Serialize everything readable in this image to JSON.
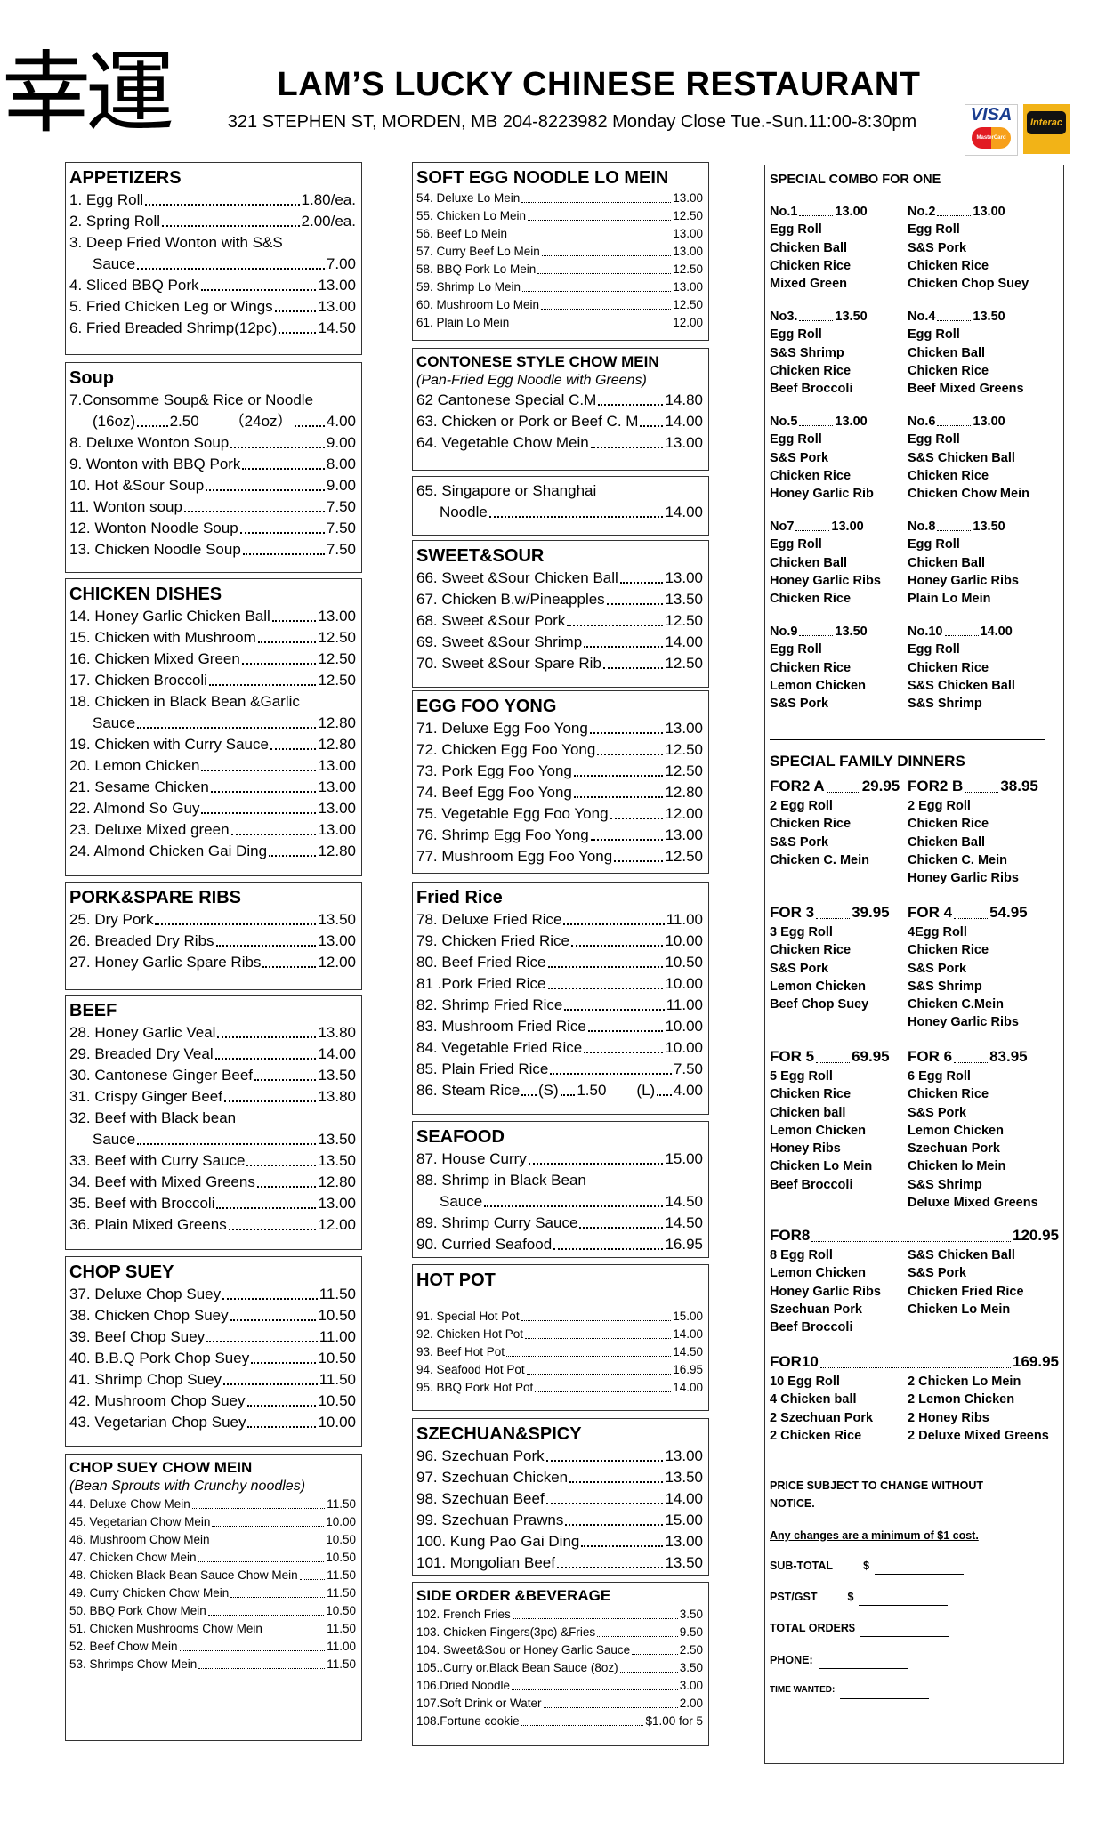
{
  "header": {
    "logo_chars": "幸運",
    "title": "LAM’S LUCKY CHINESE RESTAURANT",
    "info": "321 STEPHEN ST, MORDEN, MB  204-8223982 Monday Close Tue.-Sun.11:00-8:30pm",
    "visa": "VISA",
    "mastercard": "MasterCard",
    "interac": "Interac"
  },
  "columns": [
    [
      {
        "title": "APPETIZERS",
        "items": [
          {
            "name": "1. Egg Roll",
            "price": "1.80/ea."
          },
          {
            "name": "2. Spring Roll",
            "price": "2.00/ea."
          },
          {
            "name": "3. Deep Fried Wonton with S&S",
            "cont": "Sauce",
            "price": "7.00"
          },
          {
            "name": "4. Sliced BBQ Pork",
            "price": "13.00"
          },
          {
            "name": "5.  Fried Chicken Leg or Wings",
            "price": "13.00"
          },
          {
            "name": "6. Fried Breaded Shrimp(12pc)",
            "price": "14.50"
          }
        ]
      },
      {
        "title": "Soup",
        "items": [
          {
            "name": "7.Consomme Soup& Rice or Noodle",
            "sizes": [
              {
                "size": "(16oz)",
                "price": "2.50"
              },
              {
                "size": "（24oz）",
                "price": "4.00"
              }
            ]
          },
          {
            "name": "8. Deluxe Wonton Soup",
            "price": "9.00"
          },
          {
            "name": "9. Wonton with BBQ Pork",
            "price": "8.00"
          },
          {
            "name": "10. Hot &Sour Soup",
            "price": "9.00"
          },
          {
            "name": "11. Wonton soup",
            "price": "7.50"
          },
          {
            "name": "12. Wonton Noodle Soup",
            "price": "7.50"
          },
          {
            "name": "13. Chicken Noodle Soup",
            "price": "7.50"
          }
        ]
      },
      {
        "title": "CHICKEN DISHES",
        "items": [
          {
            "name": "14. Honey Garlic Chicken Ball",
            "price": "13.00"
          },
          {
            "name": "15. Chicken with Mushroom",
            "price": "12.50"
          },
          {
            "name": "16. Chicken Mixed Green",
            "price": "12.50"
          },
          {
            "name": "17. Chicken Broccoli",
            "price": "12.50"
          },
          {
            "name": "18. Chicken in Black Bean &Garlic",
            "cont": "Sauce",
            "price": "12.80"
          },
          {
            "name": "19. Chicken with Curry Sauce",
            "price": "12.80"
          },
          {
            "name": "20. Lemon Chicken",
            "price": "13.00"
          },
          {
            "name": "21. Sesame Chicken",
            "price": "13.00"
          },
          {
            "name": "22. Almond So Guy",
            "price": "13.00"
          },
          {
            "name": "23. Deluxe Mixed green",
            "price": "13.00"
          },
          {
            "name": "24. Almond Chicken Gai Ding",
            "price": "12.80"
          }
        ]
      },
      {
        "title": "PORK&SPARE RIBS",
        "items": [
          {
            "name": "25. Dry Pork",
            "price": "13.50"
          },
          {
            "name": "26. Breaded Dry Ribs",
            "price": "13.00"
          },
          {
            "name": "27. Honey Garlic Spare Ribs",
            "price": "12.00"
          }
        ]
      },
      {
        "title": "BEEF",
        "items": [
          {
            "name": "28. Honey Garlic Veal",
            "price": "13.80"
          },
          {
            "name": "29. Breaded Dry Veal",
            "price": "14.00"
          },
          {
            "name": "30. Cantonese Ginger Beef",
            "price": "13.50"
          },
          {
            "name": "31. Crispy Ginger Beef",
            "price": "13.80"
          },
          {
            "name": "32. Beef with Black bean",
            "cont": "Sauce",
            "price": "13.50"
          },
          {
            "name": "33. Beef with Curry Sauce",
            "price": "13.50"
          },
          {
            "name": "34. Beef with Mixed Greens",
            "price": "12.80"
          },
          {
            "name": "35. Beef with Broccoli",
            "price": "13.00"
          },
          {
            "name": "36. Plain Mixed Greens",
            "price": "12.00"
          }
        ]
      },
      {
        "title": "CHOP SUEY",
        "items": [
          {
            "name": "37. Deluxe Chop Suey",
            "price": "11.50"
          },
          {
            "name": "38. Chicken Chop Suey",
            "price": "10.50"
          },
          {
            "name": "39. Beef Chop Suey",
            "price": "11.00"
          },
          {
            "name": "40. B.B.Q Pork Chop Suey",
            "price": "10.50"
          },
          {
            "name": "41. Shrimp Chop Suey",
            "price": "11.50"
          },
          {
            "name": "42. Mushroom Chop Suey",
            "price": "10.50"
          },
          {
            "name": "43. Vegetarian Chop Suey",
            "price": "10.00"
          }
        ]
      },
      {
        "title": "CHOP SUEY CHOW MEIN",
        "subtitle": "(Bean Sprouts with Crunchy noodles)",
        "items": [
          {
            "name": "44. Deluxe Chow Mein",
            "price": "11.50"
          },
          {
            "name": "45. Vegetarian Chow Mein",
            "price": "10.00"
          },
          {
            "name": "46. Mushroom Chow Mein",
            "price": "10.50"
          },
          {
            "name": "47. Chicken Chow Mein",
            "price": "10.50"
          },
          {
            "name": "48. Chicken Black Bean Sauce Chow Mein",
            "price": "11.50"
          },
          {
            "name": "49. Curry Chicken Chow Mein",
            "price": "11.50"
          },
          {
            "name": "50. BBQ Pork Chow Mein",
            "price": "10.50"
          },
          {
            "name": "51. Chicken Mushrooms Chow Mein",
            "price": "11.50"
          },
          {
            "name": "52. Beef Chow Mein",
            "price": "11.00"
          },
          {
            "name": "53. Shrimps Chow Mein",
            "price": "11.50"
          }
        ]
      }
    ],
    [
      {
        "title": "SOFT EGG NOODLE LO MEIN",
        "items": [
          {
            "name": "54. Deluxe Lo Mein",
            "price": "13.00"
          },
          {
            "name": "55. Chicken Lo Mein",
            "price": "12.50"
          },
          {
            "name": "56. Beef Lo Mein",
            "price": "13.00"
          },
          {
            "name": "57. Curry Beef Lo Mein",
            "price": "13.00"
          },
          {
            "name": "58. BBQ Pork Lo Mein",
            "price": "12.50"
          },
          {
            "name": "59. Shrimp Lo Mein",
            "price": "13.00"
          },
          {
            "name": "60. Mushroom Lo Mein",
            "price": "12.50"
          },
          {
            "name": "61. Plain Lo Mein",
            "price": "12.00"
          }
        ]
      },
      {
        "title": "CONTONESE STYLE CHOW MEIN",
        "subtitle": "(Pan-Fried Egg Noodle with Greens)",
        "items": [
          {
            "name": "62 Cantonese Special C.M",
            "price": "14.80"
          },
          {
            "name": "63. Chicken or Pork or Beef C. M",
            "price": "14.00"
          },
          {
            "name": "64. Vegetable Chow Mein",
            "price": "13.00"
          }
        ]
      },
      {
        "items": [
          {
            "name": "65. Singapore or Shanghai",
            "cont": "Noodle",
            "price": "14.00"
          }
        ]
      },
      {
        "title": "SWEET&SOUR",
        "items": [
          {
            "name": "66. Sweet &Sour Chicken Ball",
            "price": "13.00"
          },
          {
            "name": "67. Chicken B.w/Pineapples",
            "price": "13.50"
          },
          {
            "name": "68. Sweet &Sour Pork",
            "price": "12.50"
          },
          {
            "name": "69. Sweet &Sour Shrimp",
            "price": "14.00"
          },
          {
            "name": "70. Sweet &Sour Spare Rib",
            "price": "12.50"
          }
        ]
      },
      {
        "title": "EGG FOO YONG",
        "items": [
          {
            "name": "71. Deluxe Egg Foo Yong",
            "price": "13.00"
          },
          {
            "name": "72. Chicken Egg Foo Yong",
            "price": "12.50"
          },
          {
            "name": "73. Pork Egg Foo Yong",
            "price": "12.50"
          },
          {
            "name": "74. Beef Egg Foo Yong",
            "price": "12.80"
          },
          {
            "name": "75. Vegetable Egg Foo Yong",
            "price": "12.00"
          },
          {
            "name": "76. Shrimp Egg Foo Yong",
            "price": "13.00"
          },
          {
            "name": "77. Mushroom Egg Foo Yong",
            "price": "12.50"
          }
        ]
      },
      {
        "title": "Fried Rice",
        "items": [
          {
            "name": "78. Deluxe Fried Rice",
            "price": "11.00"
          },
          {
            "name": "79. Chicken Fried Rice",
            "price": "10.00"
          },
          {
            "name": "80. Beef Fried Rice",
            "price": "10.50"
          },
          {
            "name": "81 .Pork Fried Rice",
            "price": "10.00"
          },
          {
            "name": "82. Shrimp Fried Rice",
            "price": "11.00"
          },
          {
            "name": "83. Mushroom Fried Rice",
            "price": "10.00"
          },
          {
            "name": "84. Vegetable Fried Rice",
            "price": "10.00"
          },
          {
            "name": "85. Plain Fried Rice",
            "price": "7.50"
          },
          {
            "name": "86. Steam Rice",
            "sizes": [
              {
                "size": "(S)",
                "price": "1.50"
              },
              {
                "size": "(L)",
                "price": "4.00"
              }
            ]
          }
        ]
      },
      {
        "title": "SEAFOOD",
        "items": [
          {
            "name": "87. House Curry",
            "price": "15.00"
          },
          {
            "name": "88. Shrimp in Black Bean",
            "cont": "Sauce",
            "price": "14.50"
          },
          {
            "name": "89. Shrimp Curry Sauce",
            "price": "14.50"
          },
          {
            "name": "90. Curried Seafood",
            "price": "16.95"
          }
        ]
      },
      {
        "title": "HOT POT",
        "items": [
          {
            "name": "91. Special Hot Pot",
            "price": "15.00"
          },
          {
            "name": "92. Chicken Hot Pot",
            "price": "14.00"
          },
          {
            "name": "93. Beef Hot Pot",
            "price": "14.50"
          },
          {
            "name": "94. Seafood Hot Pot",
            "price": "16.95"
          },
          {
            "name": "95. BBQ Pork Hot Pot",
            "price": "14.00"
          }
        ]
      },
      {
        "title": "SZECHUAN&SPICY",
        "items": [
          {
            "name": "96. Szechuan Pork",
            "price": "13.00"
          },
          {
            "name": "97. Szechuan Chicken",
            "price": "13.50"
          },
          {
            "name": "98. Szechuan Beef",
            "price": "14.00"
          },
          {
            "name": "99. Szechuan Prawns",
            "price": "15.00"
          },
          {
            "name": "100. Kung Pao Gai Ding",
            "price": "13.00"
          },
          {
            "name": "101. Mongolian Beef",
            "price": "13.50"
          }
        ]
      },
      {
        "title": "SIDE ORDER &BEVERAGE",
        "items": [
          {
            "name": "102. French Fries",
            "price": "3.50"
          },
          {
            "name": "103. Chicken Fingers(3pc) &Fries",
            "price": "9.50"
          },
          {
            "name": "104. Sweet&Sou or Honey Garlic Sauce",
            "price": "2.50"
          },
          {
            "name": "105..Curry or.Black Bean Sauce (8oz)",
            "price": "3.50"
          },
          {
            "name": "106.Dried Noodle",
            "price": "3.00"
          },
          {
            "name": "107.Soft Drink or Water",
            "price": "2.00"
          },
          {
            "name": "108.Fortune cookie",
            "price": "$1.00 for 5"
          }
        ]
      }
    ]
  ],
  "specials": {
    "title": "SPECIAL COMBO FOR ONE",
    "combos": [
      {
        "label": "No.1",
        "price": "13.00",
        "items": [
          "Egg Roll",
          "Chicken Ball",
          "Chicken Rice",
          "Mixed Green"
        ]
      },
      {
        "label": "No.2",
        "price": "13.00",
        "items": [
          "Egg Roll",
          "S&S Pork",
          "Chicken Rice",
          "Chicken Chop Suey"
        ]
      },
      {
        "label": "No3.",
        "price": "13.50",
        "items": [
          "Egg Roll",
          "S&S Shrimp",
          "Chicken Rice",
          "Beef Broccoli"
        ]
      },
      {
        "label": "No.4",
        "price": "13.50",
        "items": [
          "Egg Roll",
          "Chicken Ball",
          "Chicken Rice",
          "Beef Mixed Greens"
        ]
      },
      {
        "label": "No.5",
        "price": "13.00",
        "items": [
          "Egg Roll",
          "S&S Pork",
          "Chicken Rice",
          "Honey Garlic Rib"
        ]
      },
      {
        "label": "No.6",
        "price": "13.00",
        "items": [
          "Egg Roll",
          "S&S Chicken Ball",
          "Chicken Rice",
          "Chicken Chow Mein"
        ]
      },
      {
        "label": "No7",
        "price": "13.00",
        "items": [
          "Egg Roll",
          "Chicken Ball",
          "Honey Garlic Ribs",
          "Chicken Rice"
        ]
      },
      {
        "label": "No.8",
        "price": "13.50",
        "items": [
          "Egg Roll",
          "Chicken Ball",
          "Honey Garlic Ribs",
          "Plain Lo Mein"
        ]
      },
      {
        "label": "No.9",
        "price": "13.50",
        "items": [
          "Egg Roll",
          "Chicken Rice",
          "Lemon Chicken",
          "S&S Pork"
        ]
      },
      {
        "label": "No.10",
        "price": "14.00",
        "items": [
          "Egg Roll",
          "Chicken Rice",
          "S&S Chicken Ball",
          "S&S Shrimp"
        ]
      }
    ],
    "family_title": "SPECIAL FAMILY DINNERS",
    "family": [
      {
        "label": "FOR2 A",
        "price": "29.95",
        "items": [
          "2 Egg Roll",
          "Chicken Rice",
          "S&S Pork",
          "Chicken C. Mein"
        ]
      },
      {
        "label": "FOR2 B",
        "price": "38.95",
        "items": [
          "2 Egg Roll",
          "Chicken Rice",
          "Chicken Ball",
          "Chicken C.  Mein",
          "Honey Garlic Ribs"
        ]
      },
      {
        "label": "FOR 3",
        "price": "39.95",
        "items": [
          "3 Egg Roll",
          "Chicken Rice",
          "S&S Pork",
          "Lemon Chicken",
          "Beef Chop Suey"
        ]
      },
      {
        "label": "FOR 4",
        "price": "54.95",
        "items": [
          "4Egg Roll",
          "Chicken Rice",
          "S&S Pork",
          "S&S Shrimp",
          "Chicken C.Mein",
          "Honey Garlic Ribs"
        ]
      },
      {
        "label": "FOR 5",
        "price": "69.95",
        "items": [
          "5 Egg Roll",
          "Chicken Rice",
          "Chicken ball",
          "Lemon Chicken",
          "Honey Ribs",
          "Chicken Lo Mein",
          "Beef Broccoli"
        ]
      },
      {
        "label": "FOR 6",
        "price": "83.95",
        "items": [
          "6 Egg Roll",
          "Chicken Rice",
          "S&S Pork",
          "Lemon Chicken",
          "Szechuan Pork",
          "Chicken lo Mein",
          "S&S Shrimp",
          "Deluxe Mixed Greens"
        ]
      }
    ],
    "family_wide": [
      {
        "label": "FOR8",
        "price": "120.95",
        "left": [
          "8 Egg Roll",
          "Lemon Chicken",
          "Honey Garlic Ribs",
          "Szechuan Pork",
          "Beef Broccoli"
        ],
        "right": [
          "S&S Chicken Ball",
          "S&S Pork",
          "Chicken Fried Rice",
          "Chicken Lo Mein"
        ]
      },
      {
        "label": "FOR10",
        "price": "169.95",
        "left": [
          "10 Egg Roll",
          "4 Chicken ball",
          "2 Szechuan Pork",
          "2 Chicken Rice"
        ],
        "right": [
          "2 Chicken Lo Mein",
          "2 Lemon Chicken",
          "2 Honey Ribs",
          "2 Deluxe Mixed Greens"
        ]
      }
    ],
    "notice": "PRICE SUBJECT TO CHANGE WITHOUT NOTICE.",
    "changes": "Any changes are a minimum of $1 cost.",
    "form": [
      {
        "label": "SUB-TOTAL",
        "prefix": "$"
      },
      {
        "label": "PST/GST",
        "prefix": "$"
      },
      {
        "label": "TOTAL ORDER$"
      },
      {
        "label": "PHONE:"
      },
      {
        "label": "TIME WANTED:"
      }
    ]
  }
}
